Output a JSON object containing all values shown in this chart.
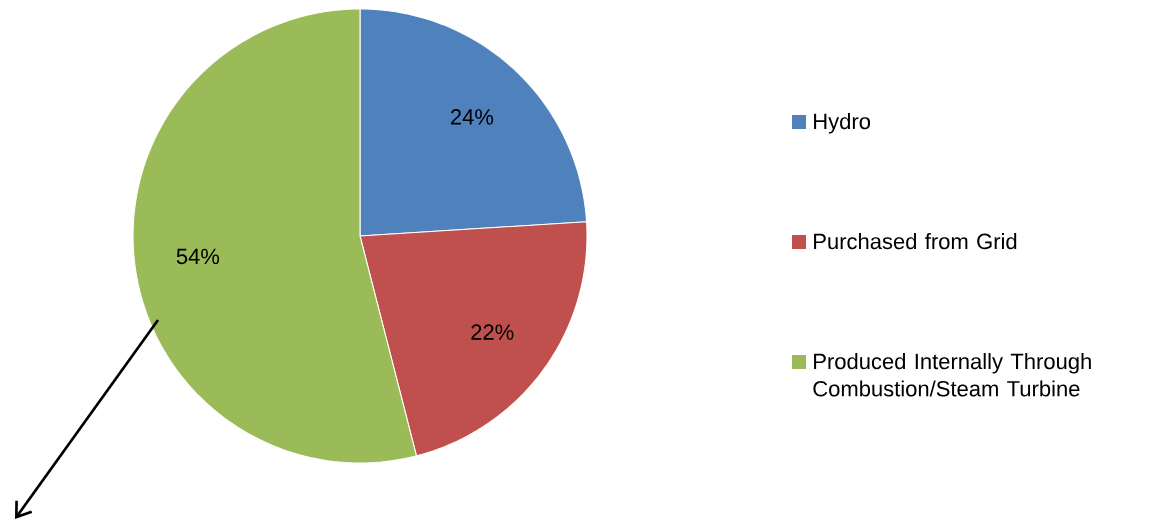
{
  "chart_data": {
    "type": "pie",
    "categories": [
      "Hydro",
      "Purchased from Grid",
      "Produced Internally Through Combustion/Steam Turbine"
    ],
    "values": [
      24,
      22,
      54
    ],
    "colors": [
      "#4f81bd",
      "#c0504d",
      "#9bbb59"
    ],
    "value_labels": [
      "24%",
      "22%",
      "54%"
    ],
    "legend": "right"
  }
}
